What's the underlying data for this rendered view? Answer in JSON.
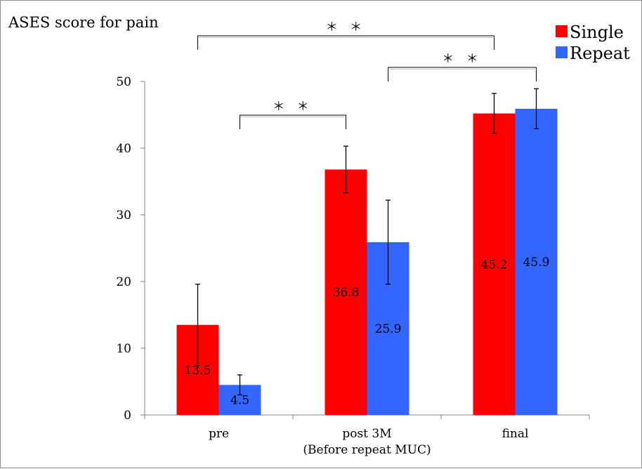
{
  "chart_data": {
    "type": "bar",
    "title": "ASES score for pain",
    "xlabel": "",
    "ylabel": "",
    "categories": [
      "pre",
      "post 3M",
      "final"
    ],
    "category_sublabels": [
      "",
      "(Before repeat MUC)",
      ""
    ],
    "ylim": [
      0,
      50
    ],
    "yticks": [
      0,
      10,
      20,
      30,
      40,
      50
    ],
    "grid": false,
    "legend_position": "top-right",
    "series": [
      {
        "name": "Single",
        "color": "#ff0000",
        "values": [
          13.5,
          36.8,
          45.2
        ],
        "labels": [
          "13.5",
          "36.8",
          "45.2"
        ],
        "error": [
          6.1,
          3.5,
          3.0
        ]
      },
      {
        "name": "Repeat",
        "color": "#3366ff",
        "values": [
          4.5,
          25.9,
          45.9
        ],
        "labels": [
          "4.5",
          "25.9",
          "45.9"
        ],
        "error": [
          1.5,
          6.3,
          3.0
        ]
      }
    ],
    "significance": [
      {
        "from": "pre",
        "to": "post 3M",
        "label": "＊ ＊"
      },
      {
        "from": "post 3M",
        "to": "final",
        "label": "＊ ＊"
      },
      {
        "from": "pre",
        "to": "final",
        "label": "＊ ＊"
      }
    ]
  }
}
